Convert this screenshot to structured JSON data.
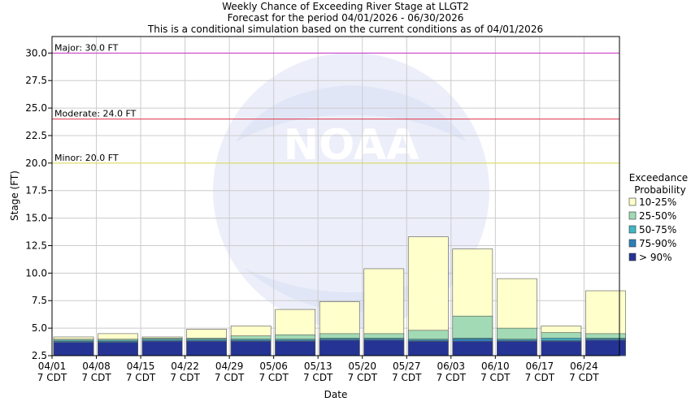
{
  "chart_data": {
    "type": "bar",
    "title": "Weekly Chance of Exceeding River Stage at LLGT2",
    "subtitle_1": "Forecast for the period 04/01/2026 - 06/30/2026",
    "subtitle_2": "This is a conditional simulation based on the current conditions as of 04/01/2026",
    "xlabel": "Date",
    "ylabel": "Stage (FT)",
    "ylim": [
      2.5,
      31.5
    ],
    "yticks": [
      2.5,
      5.0,
      7.5,
      10.0,
      12.5,
      15.0,
      17.5,
      20.0,
      22.5,
      25.0,
      27.5,
      30.0
    ],
    "ytick_labels": [
      "2.5",
      "5.0",
      "7.5",
      "10.0",
      "12.5",
      "15.0",
      "17.5",
      "20.0",
      "22.5",
      "25.0",
      "27.5",
      "30.0"
    ],
    "categories": [
      "04/01",
      "04/08",
      "04/15",
      "04/22",
      "04/29",
      "05/06",
      "05/13",
      "05/20",
      "05/27",
      "06/03",
      "06/10",
      "06/17",
      "06/24"
    ],
    "tick_sublabel": "7 CDT",
    "grid": true,
    "thresholds": [
      {
        "label": "Major: 30.0 FT",
        "value": 30.0,
        "color": "#cc33cc"
      },
      {
        "label": "Moderate: 24.0 FT",
        "value": 24.0,
        "color": "#dd3344"
      },
      {
        "label": "Minor: 20.0 FT",
        "value": 20.0,
        "color": "#dddd55"
      }
    ],
    "legend": {
      "title_1": "Exceedance",
      "title_2": "Probability",
      "position": "right",
      "items": [
        {
          "label": "10-25%",
          "color": "#ffffcc"
        },
        {
          "label": "25-50%",
          "color": "#a1dab4"
        },
        {
          "label": "50-75%",
          "color": "#41b6c4"
        },
        {
          "label": "75-90%",
          "color": "#2c7fb8"
        },
        {
          "label": "> 90%",
          "color": "#253494"
        }
      ]
    },
    "series": [
      {
        "name": "> 90%",
        "values": [
          3.7,
          3.7,
          3.8,
          3.8,
          3.8,
          3.8,
          3.9,
          3.9,
          3.8,
          3.8,
          3.8,
          3.8,
          3.9
        ]
      },
      {
        "name": "75-90%",
        "values": [
          3.8,
          3.8,
          3.9,
          3.9,
          3.9,
          3.9,
          4.0,
          4.0,
          3.9,
          4.0,
          3.9,
          3.9,
          4.0
        ]
      },
      {
        "name": "50-75%",
        "values": [
          3.9,
          3.9,
          4.0,
          4.0,
          4.0,
          4.0,
          4.1,
          4.1,
          4.0,
          4.1,
          4.0,
          4.1,
          4.1
        ]
      },
      {
        "name": "25-50%",
        "values": [
          4.0,
          4.0,
          4.1,
          4.1,
          4.3,
          4.4,
          4.5,
          4.5,
          4.8,
          6.1,
          5.0,
          4.6,
          4.5
        ]
      },
      {
        "name": "10-25%",
        "values": [
          4.2,
          4.5,
          4.2,
          4.9,
          5.2,
          6.7,
          7.4,
          10.4,
          13.3,
          12.2,
          9.5,
          5.2,
          8.4
        ]
      }
    ]
  },
  "watermark": "NOAA"
}
